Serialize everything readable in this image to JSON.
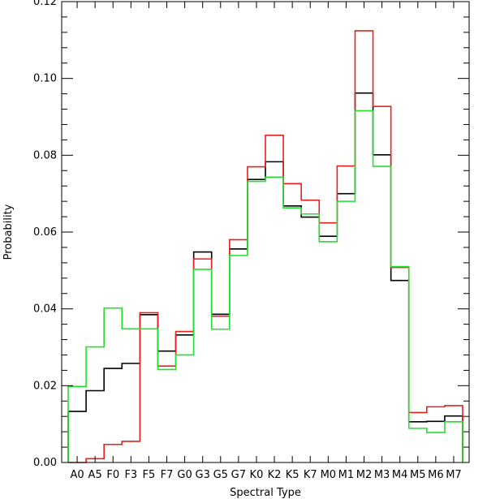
{
  "chart_data": {
    "type": "step",
    "title": "",
    "xlabel": "Spectral Type",
    "ylabel": "Probability",
    "ylim": [
      0,
      0.12
    ],
    "yticks": [
      0.0,
      0.02,
      0.04,
      0.06,
      0.08,
      0.1,
      0.12
    ],
    "yticklabels": [
      "0.00",
      "0.02",
      "0.04",
      "0.06",
      "0.08",
      "0.10",
      "0.12"
    ],
    "grid": false,
    "categories": [
      "A0",
      "A5",
      "F0",
      "F3",
      "F5",
      "F7",
      "G0",
      "G3",
      "G5",
      "G7",
      "K0",
      "K2",
      "K5",
      "K7",
      "M0",
      "M1",
      "M2",
      "M3",
      "M4",
      "M5",
      "M6",
      "M7"
    ],
    "series": [
      {
        "color": "#000000",
        "values": [
          0.0133,
          0.0187,
          0.0245,
          0.0258,
          0.0385,
          0.029,
          0.0332,
          0.0548,
          0.0386,
          0.0556,
          0.0737,
          0.0783,
          0.0668,
          0.0639,
          0.0589,
          0.07,
          0.0962,
          0.0801,
          0.0474,
          0.0106,
          0.0107,
          0.0121
        ]
      },
      {
        "color": "#e8211d",
        "values": [
          0.0,
          0.001,
          0.0047,
          0.0055,
          0.039,
          0.0251,
          0.0341,
          0.053,
          0.0381,
          0.058,
          0.077,
          0.0852,
          0.0726,
          0.0683,
          0.0624,
          0.0772,
          0.1124,
          0.0927,
          0.0508,
          0.013,
          0.0145,
          0.0148
        ]
      },
      {
        "color": "#22e02c",
        "values": [
          0.0198,
          0.0301,
          0.0402,
          0.0348,
          0.0348,
          0.0242,
          0.028,
          0.0503,
          0.0347,
          0.0539,
          0.0732,
          0.0743,
          0.0663,
          0.0647,
          0.0575,
          0.068,
          0.0916,
          0.0771,
          0.051,
          0.0089,
          0.0078,
          0.0106
        ]
      }
    ]
  }
}
